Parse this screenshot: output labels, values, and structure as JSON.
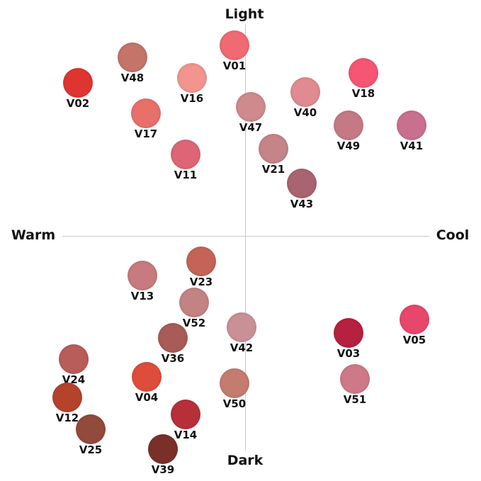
{
  "axes": {
    "top": "Light",
    "bottom": "Dark",
    "left": "Warm",
    "right": "Cool"
  },
  "shades": [
    {
      "code": "V01",
      "color": "#ef6a72"
    },
    {
      "code": "V48",
      "color": "#c47468"
    },
    {
      "code": "V02",
      "color": "#df3530"
    },
    {
      "code": "V16",
      "color": "#f1958e"
    },
    {
      "code": "V18",
      "color": "#f65574"
    },
    {
      "code": "V40",
      "color": "#e08a91"
    },
    {
      "code": "V17",
      "color": "#e8706b"
    },
    {
      "code": "V47",
      "color": "#cf8a8e"
    },
    {
      "code": "V49",
      "color": "#c47a85"
    },
    {
      "code": "V41",
      "color": "#c9708e"
    },
    {
      "code": "V11",
      "color": "#dd6676"
    },
    {
      "code": "V21",
      "color": "#c58488"
    },
    {
      "code": "V43",
      "color": "#a86470"
    },
    {
      "code": "V23",
      "color": "#c46458"
    },
    {
      "code": "V13",
      "color": "#c87a7e"
    },
    {
      "code": "V52",
      "color": "#c38382"
    },
    {
      "code": "V42",
      "color": "#c99196"
    },
    {
      "code": "V36",
      "color": "#a85b57"
    },
    {
      "code": "V03",
      "color": "#b5213f"
    },
    {
      "code": "V05",
      "color": "#e8476c"
    },
    {
      "code": "V24",
      "color": "#b85d5a"
    },
    {
      "code": "V04",
      "color": "#df4c3c"
    },
    {
      "code": "V50",
      "color": "#c47c6e"
    },
    {
      "code": "V51",
      "color": "#cd7988"
    },
    {
      "code": "V12",
      "color": "#b5432c"
    },
    {
      "code": "V14",
      "color": "#b73039"
    },
    {
      "code": "V25",
      "color": "#924a3c"
    },
    {
      "code": "V39",
      "color": "#7a3028"
    }
  ]
}
